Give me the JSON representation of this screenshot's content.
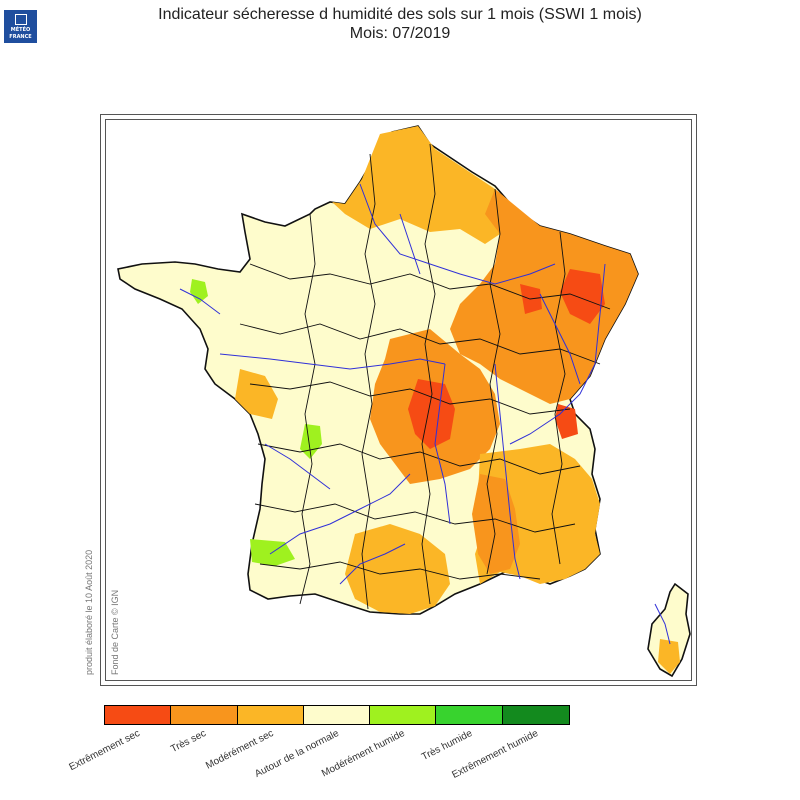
{
  "header": {
    "title": "Indicateur sécheresse d humidité des sols sur 1 mois (SSWI 1 mois)",
    "subtitle": "Mois: 07/2019"
  },
  "logo": {
    "line1": "MÉTÉO",
    "line2": "FRANCE",
    "icon": "meteo-france-logo"
  },
  "credits": {
    "produced": "produit élaboré le 10 Août 2020",
    "basemap": "Fond de Carte © IGN"
  },
  "legend": [
    {
      "label": "Extrêmement sec",
      "color": "#f64b14"
    },
    {
      "label": "Très sec",
      "color": "#f8951d"
    },
    {
      "label": "Modérément sec",
      "color": "#fbb626"
    },
    {
      "label": "Autour de la normale",
      "color": "#fefccc"
    },
    {
      "label": "Modérément humide",
      "color": "#9ff11f"
    },
    {
      "label": "Très humide",
      "color": "#38d32e"
    },
    {
      "label": "Extrêmement humide",
      "color": "#138a1e"
    }
  ],
  "map": {
    "rivers_color": "#3030d8",
    "borders_color": "#111111"
  }
}
